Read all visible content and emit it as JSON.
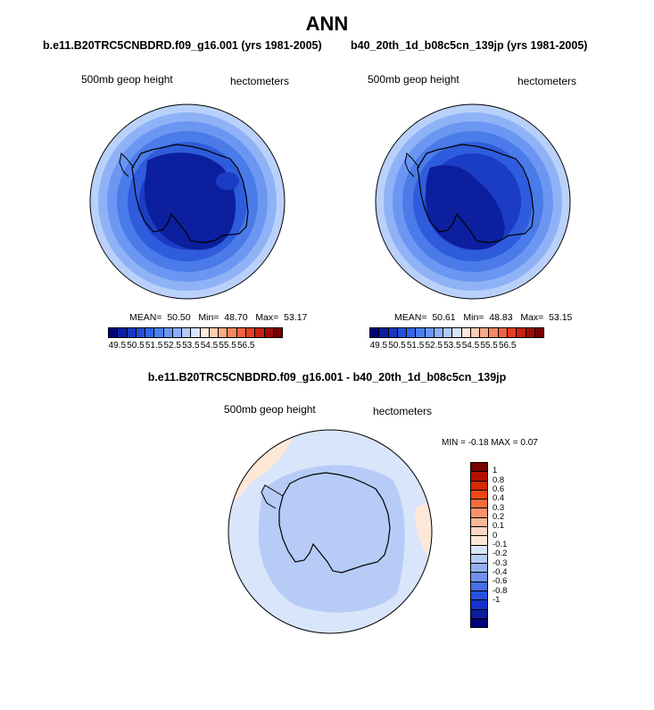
{
  "figure_title": "ANN",
  "panels": [
    {
      "title": "b.e11.B20TRC5CNBDRD.f09_g16.001 (yrs 1981-2005)",
      "left_label": "500mb geop height",
      "right_label": "hectometers",
      "stats": {
        "mean_label": "MEAN=",
        "mean": "50.50",
        "min_label": "Min=",
        "min": "48.70",
        "max_label": "Max=",
        "max": "53.17"
      }
    },
    {
      "title": "b40_20th_1d_b08c5cn_139jp (yrs 1981-2005)",
      "left_label": "500mb geop height",
      "right_label": "hectometers",
      "stats": {
        "mean_label": "MEAN=",
        "mean": "50.61",
        "min_label": "Min=",
        "min": "48.83",
        "max_label": "Max=",
        "max": "53.15"
      }
    }
  ],
  "diff_panel": {
    "title": "b.e11.B20TRC5CNBDRD.f09_g16.001 - b40_20th_1d_b08c5cn_139jp",
    "left_label": "500mb geop height",
    "right_label": "hectometers",
    "minmax_text": "MIN =  -0.18 MAX =   0.07"
  },
  "colorbar_main": {
    "colors": [
      "#00007f",
      "#0c1ea3",
      "#1838c0",
      "#2450d8",
      "#3466e8",
      "#4b80f2",
      "#6a98f6",
      "#8cb0f8",
      "#b0caf9",
      "#d6e4fb",
      "#fde9dc",
      "#fbcdb0",
      "#f8ac85",
      "#f58862",
      "#f06440",
      "#e34024",
      "#c72212",
      "#a00c06",
      "#7a0000"
    ],
    "tick_labels": [
      "49.5",
      "50.5",
      "51.5",
      "52.5",
      "53.5",
      "54.5",
      "55.5",
      "56.5"
    ]
  },
  "colorbar_diff": {
    "colors": [
      "#7a0000",
      "#b51000",
      "#d82800",
      "#f04810",
      "#f36e3a",
      "#f69468",
      "#f9b898",
      "#fbd6c2",
      "#fde8d8",
      "#d9e4fb",
      "#b6cbf6",
      "#94b0f2",
      "#6f90ee",
      "#4a6ee9",
      "#2a50e2",
      "#1432c8",
      "#0a1ea0",
      "#00007a"
    ],
    "tick_labels": [
      "1",
      "0.8",
      "0.6",
      "0.4",
      "0.3",
      "0.2",
      "0.1",
      "0",
      "-0.1",
      "-0.2",
      "-0.3",
      "-0.4",
      "-0.6",
      "-0.8",
      "-1"
    ]
  }
}
